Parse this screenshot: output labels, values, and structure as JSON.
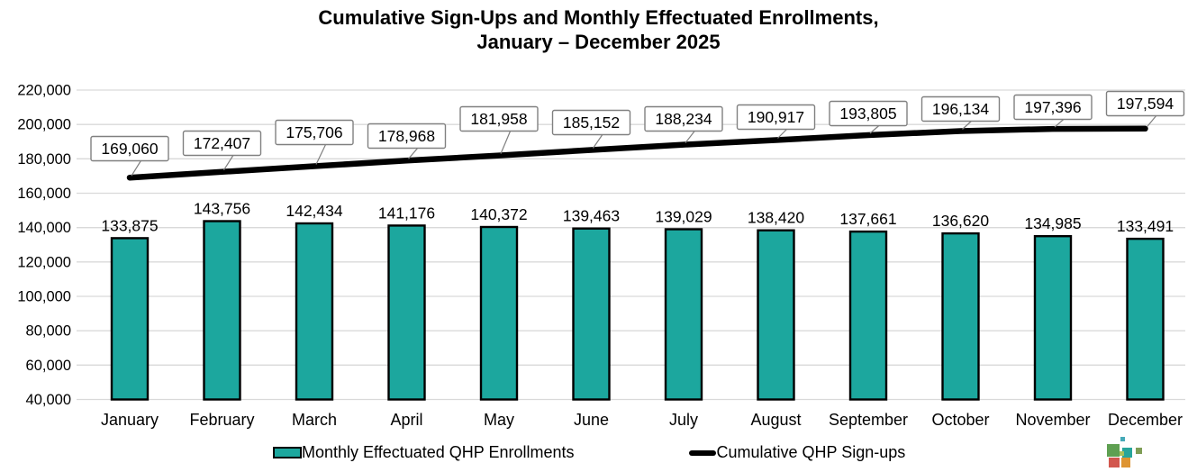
{
  "title": {
    "line1": "Cumulative Sign-Ups and Monthly Effectuated Enrollments,",
    "line2": "January – December 2025"
  },
  "chart_data": {
    "type": "bar+line combo",
    "categories": [
      "January",
      "February",
      "March",
      "April",
      "May",
      "June",
      "July",
      "August",
      "September",
      "October",
      "November",
      "December"
    ],
    "series": [
      {
        "name": "Monthly Effectuated QHP Enrollments",
        "type": "bar",
        "color": "#1CA79E",
        "values": [
          133875,
          143756,
          142434,
          141176,
          140372,
          139463,
          139029,
          138420,
          137661,
          136620,
          134985,
          133491
        ]
      },
      {
        "name": "Cumulative QHP Sign-ups",
        "type": "line",
        "color": "#000000",
        "values": [
          169060,
          172407,
          175706,
          178968,
          181958,
          185152,
          188234,
          190917,
          193805,
          196134,
          197396,
          197594
        ]
      }
    ],
    "ylim": [
      40000,
      220000
    ],
    "ytick_step": 20000,
    "ytick_labels": [
      "40,000",
      "60,000",
      "80,000",
      "100,000",
      "120,000",
      "140,000",
      "160,000",
      "180,000",
      "200,000",
      "220,000"
    ],
    "grid": true,
    "gridline_color": "#D9D9D9",
    "data_label_box_border": "#808080",
    "legend_position": "bottom"
  },
  "logo": {
    "name": "mosaic-squares-logo",
    "colors": {
      "dot_teal": "#45A9B8",
      "green": "#5FA052",
      "teal": "#27A59B",
      "light_green": "#A8C05B",
      "olive": "#7F9E56",
      "red": "#D2574E",
      "orange": "#DE9432"
    }
  }
}
